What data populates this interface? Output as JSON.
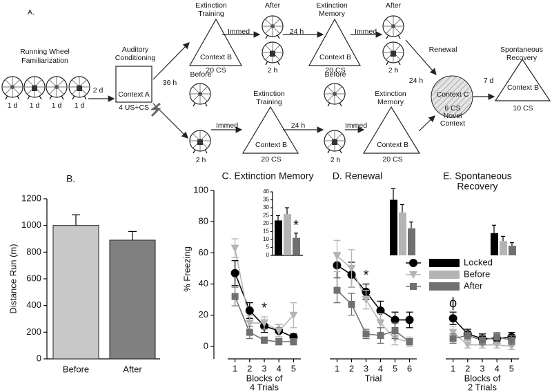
{
  "diagram": {
    "labels": [
      "A.",
      "Running Wheel",
      "Familiarization",
      "1 d",
      "1 d",
      "1 d",
      "1 d",
      "2 d",
      "Auditory",
      "Conditioning",
      "Context A",
      "4 US+CS",
      "36 h",
      "Extinction",
      "Training",
      "Context B",
      "20 CS",
      "Immed",
      "After",
      "2 h",
      "24 h",
      "Extinction",
      "Memory",
      "Context B",
      "20 CS",
      "Immed",
      "After",
      "2 h",
      "24 h",
      "Renewal",
      "Context C",
      "6 CS",
      "Novel",
      "Context",
      "7 d",
      "Spontaneous",
      "Recovery",
      "Context B",
      "10 CS",
      "Before",
      "2 h",
      "Immed",
      "Extinction",
      "Training",
      "Context B",
      "20 CS",
      "24 h",
      "Before",
      "2 h",
      "Immed",
      "Extinction",
      "Memory",
      "Context B",
      "20 CS"
    ]
  },
  "chart_data": [
    {
      "type": "bar",
      "label": "B.",
      "categories": [
        "Before",
        "After"
      ],
      "values": [
        1000,
        890
      ],
      "errors": [
        80,
        65
      ],
      "colors": [
        "#c8c8c8",
        "#808080"
      ],
      "ylabel": "Distance Run (m)",
      "ylim": [
        0,
        1200
      ],
      "yticks": [
        0,
        200,
        400,
        600,
        800,
        1000,
        1200
      ]
    },
    {
      "type": "line",
      "title": "C. Extinction Memory",
      "xlabel": [
        "Blocks of",
        "4 Trials"
      ],
      "ylabel": "% Freezing",
      "ylim": [
        -8,
        100
      ],
      "yticks": [
        0,
        20,
        40,
        60,
        80,
        100
      ],
      "xlim": [
        0.5,
        5.5
      ],
      "x": [
        1,
        2,
        3,
        4,
        5
      ],
      "xticks": [
        1,
        2,
        3,
        4,
        5
      ],
      "series": [
        {
          "name": "Locked",
          "color": "#000000",
          "marker": "circle",
          "values": [
            47,
            23,
            13,
            10,
            6
          ],
          "errors": [
            8,
            5,
            4,
            4,
            2
          ]
        },
        {
          "name": "Before",
          "color": "#b4b4b4",
          "marker": "triangle",
          "values": [
            63,
            15,
            15,
            10,
            20
          ],
          "errors": [
            6,
            5,
            4,
            4,
            8
          ]
        },
        {
          "name": "After",
          "color": "#707070",
          "marker": "square",
          "values": [
            32,
            9,
            4,
            3,
            3
          ],
          "errors": [
            6,
            4,
            2,
            2,
            2
          ]
        }
      ],
      "annotations": [
        {
          "text": "*",
          "x": 3
        }
      ],
      "inset": {
        "ylim": [
          0,
          40
        ],
        "yticks": [
          0,
          5,
          10,
          15,
          20,
          25,
          30,
          35,
          40
        ],
        "values": [
          22,
          26,
          11
        ],
        "errors": [
          3,
          4,
          3
        ],
        "annotation": "*"
      }
    },
    {
      "type": "line",
      "title": "D. Renewal",
      "xlabel": [
        "Trial"
      ],
      "ylim": [
        -8,
        100
      ],
      "xlim": [
        0.5,
        6.5
      ],
      "x": [
        1,
        2,
        3,
        4,
        5,
        6
      ],
      "xticks": [
        1,
        2,
        3,
        4,
        5,
        6
      ],
      "series": [
        {
          "color": "#000000",
          "marker": "circle",
          "values": [
            52,
            46,
            35,
            23,
            17,
            17
          ],
          "errors": [
            8,
            8,
            5,
            6,
            5,
            5
          ]
        },
        {
          "color": "#b4b4b4",
          "marker": "triangle",
          "values": [
            58,
            50,
            30,
            15,
            5,
            3
          ],
          "errors": [
            10,
            12,
            6,
            6,
            4,
            3
          ]
        },
        {
          "color": "#707070",
          "marker": "square",
          "values": [
            36,
            27,
            8,
            7,
            10,
            3
          ],
          "errors": [
            8,
            7,
            3,
            5,
            5,
            2
          ]
        }
      ],
      "annotations": [
        {
          "text": "*",
          "x": 3
        }
      ],
      "inset": {
        "ylim": [
          0,
          40
        ],
        "values": [
          35,
          27,
          17
        ],
        "errors": [
          7,
          5,
          4
        ]
      }
    },
    {
      "type": "line",
      "title": "E. Spontaneous",
      "title2": "Recovery",
      "xlabel": [
        "Blocks of",
        "2 Trials"
      ],
      "ylim": [
        -8,
        100
      ],
      "xlim": [
        0.5,
        5.5
      ],
      "x": [
        1,
        2,
        3,
        4,
        5
      ],
      "xticks": [
        1,
        2,
        3,
        4,
        5
      ],
      "series": [
        {
          "color": "#000000",
          "marker": "circle",
          "values": [
            18,
            8,
            5,
            5,
            6
          ],
          "errors": [
            4,
            3,
            3,
            3,
            3
          ]
        },
        {
          "color": "#b4b4b4",
          "marker": "triangle",
          "values": [
            9,
            1,
            1,
            1,
            0
          ],
          "errors": [
            4,
            2,
            2,
            2,
            2
          ]
        },
        {
          "color": "#707070",
          "marker": "square",
          "values": [
            5,
            7,
            4,
            6,
            4
          ],
          "errors": [
            3,
            3,
            3,
            3,
            3
          ]
        }
      ],
      "annotations": [
        {
          "text": "ϕ",
          "x": 1
        }
      ],
      "inset": {
        "ylim": [
          0,
          40
        ],
        "values": [
          14,
          9,
          6
        ],
        "errors": [
          5,
          3,
          2
        ]
      }
    }
  ]
}
